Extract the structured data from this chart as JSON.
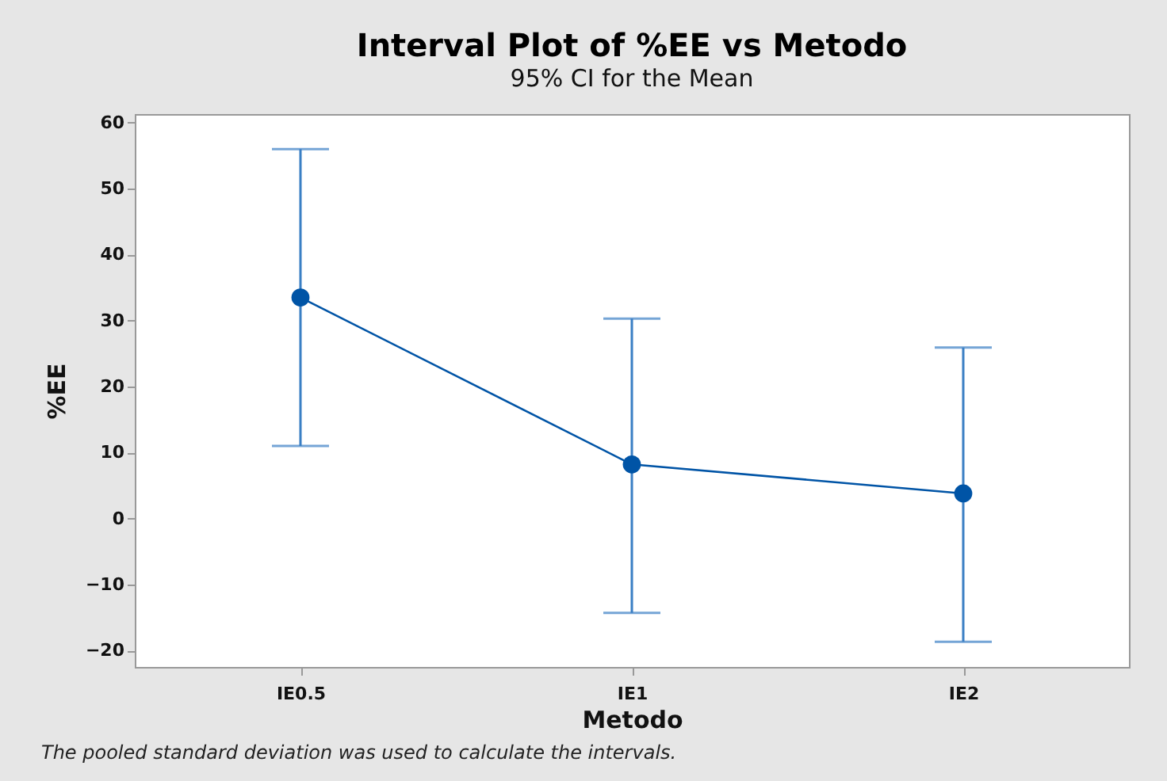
{
  "chart_data": {
    "type": "line",
    "title": "Interval Plot of %EE vs Metodo",
    "subtitle": "95% CI for the Mean",
    "xlabel": "Metodo",
    "ylabel": "%EE",
    "categories": [
      "IE0.5",
      "IE1",
      "IE2"
    ],
    "series": [
      {
        "color": "#0054a6",
        "values": [
          33.5,
          8.2,
          3.8
        ],
        "errors": [
          [
            11.0,
            56.0
          ],
          [
            -14.3,
            30.3
          ],
          [
            -18.7,
            25.9
          ]
        ]
      }
    ],
    "ylim": [
      -22.5,
      61.3
    ],
    "yticks": [
      -20,
      -10,
      0,
      10,
      20,
      30,
      40,
      50,
      60
    ],
    "grid": false,
    "marker": "circle",
    "line_style": "solid",
    "annotations": [
      "The pooled standard deviation was used to calculate the intervals."
    ]
  }
}
